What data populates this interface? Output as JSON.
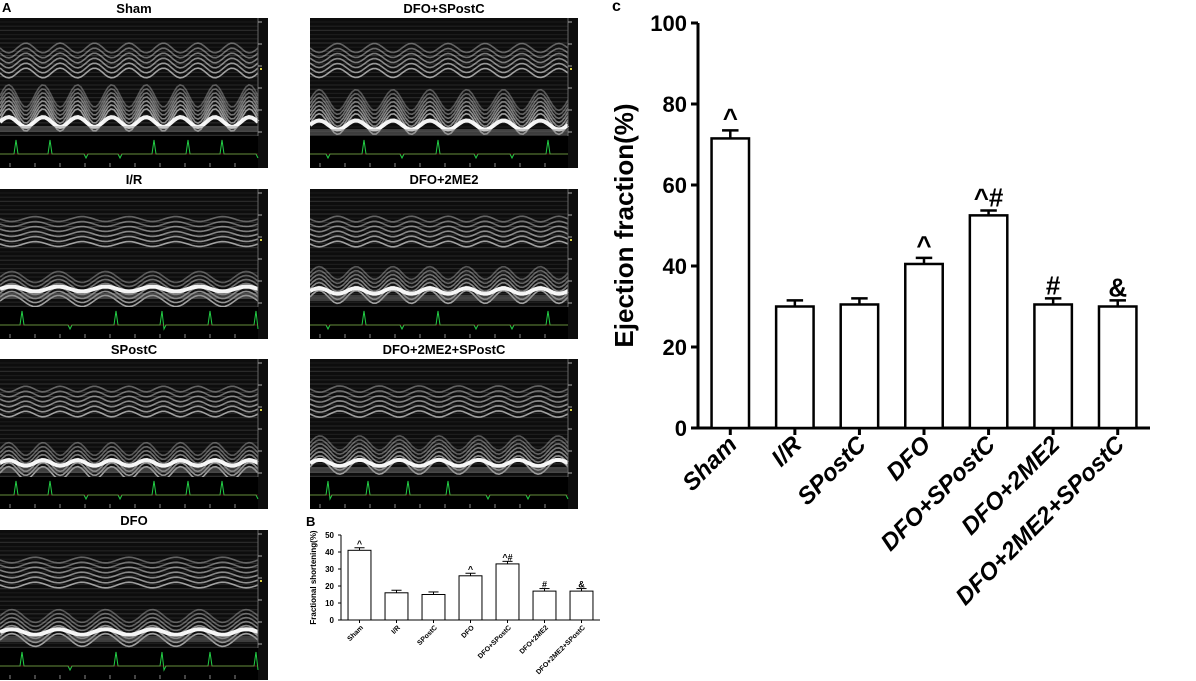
{
  "panel_labels": {
    "a": "A",
    "b": "B",
    "c": "c"
  },
  "echo_panels": [
    {
      "title": "Sham"
    },
    {
      "title": "DFO+SPostC"
    },
    {
      "title": "I/R"
    },
    {
      "title": "DFO+2ME2"
    },
    {
      "title": "SPostC"
    },
    {
      "title": "DFO+2ME2+SPostC"
    },
    {
      "title": "DFO"
    }
  ],
  "colors": {
    "ecg": "#22cc44",
    "bar_fill": "#ffffff",
    "bar_stroke": "#000000",
    "echo_bg": "#0d0d0d",
    "echo_scale": "#d8cc40"
  },
  "chart_data": [
    {
      "id": "B",
      "type": "bar",
      "categories": [
        "Sham",
        "I/R",
        "SPostC",
        "DFO",
        "DFO+SPostC",
        "DFO+2ME2",
        "DFO+2ME2+SPostC"
      ],
      "values": [
        41,
        16,
        15,
        26,
        33,
        17,
        17
      ],
      "errors": [
        1.5,
        1.5,
        1.5,
        1.5,
        1.5,
        1.5,
        1.5
      ],
      "annotations": [
        "^",
        "",
        "",
        "^",
        "^#",
        "#",
        "&"
      ],
      "ylabel": "Fractional shortening(%)",
      "yticks": [
        0,
        10,
        20,
        30,
        40,
        50
      ],
      "ylim": [
        0,
        50
      ]
    },
    {
      "id": "C",
      "type": "bar",
      "categories": [
        "Sham",
        "I/R",
        "SPostC",
        "DFO",
        "DFO+SPostC",
        "DFO+2ME2",
        "DFO+2ME2+SPostC"
      ],
      "values": [
        71.5,
        30,
        30.5,
        40.5,
        52.5,
        30.5,
        30
      ],
      "errors": [
        2,
        1.5,
        1.5,
        1.5,
        1.2,
        1.5,
        1.5
      ],
      "annotations": [
        "^",
        "",
        "",
        "^",
        "^#",
        "#",
        "&"
      ],
      "ylabel": "Ejection fraction(%)",
      "yticks": [
        0,
        20,
        40,
        60,
        80,
        100
      ],
      "ylim": [
        0,
        100
      ]
    }
  ]
}
